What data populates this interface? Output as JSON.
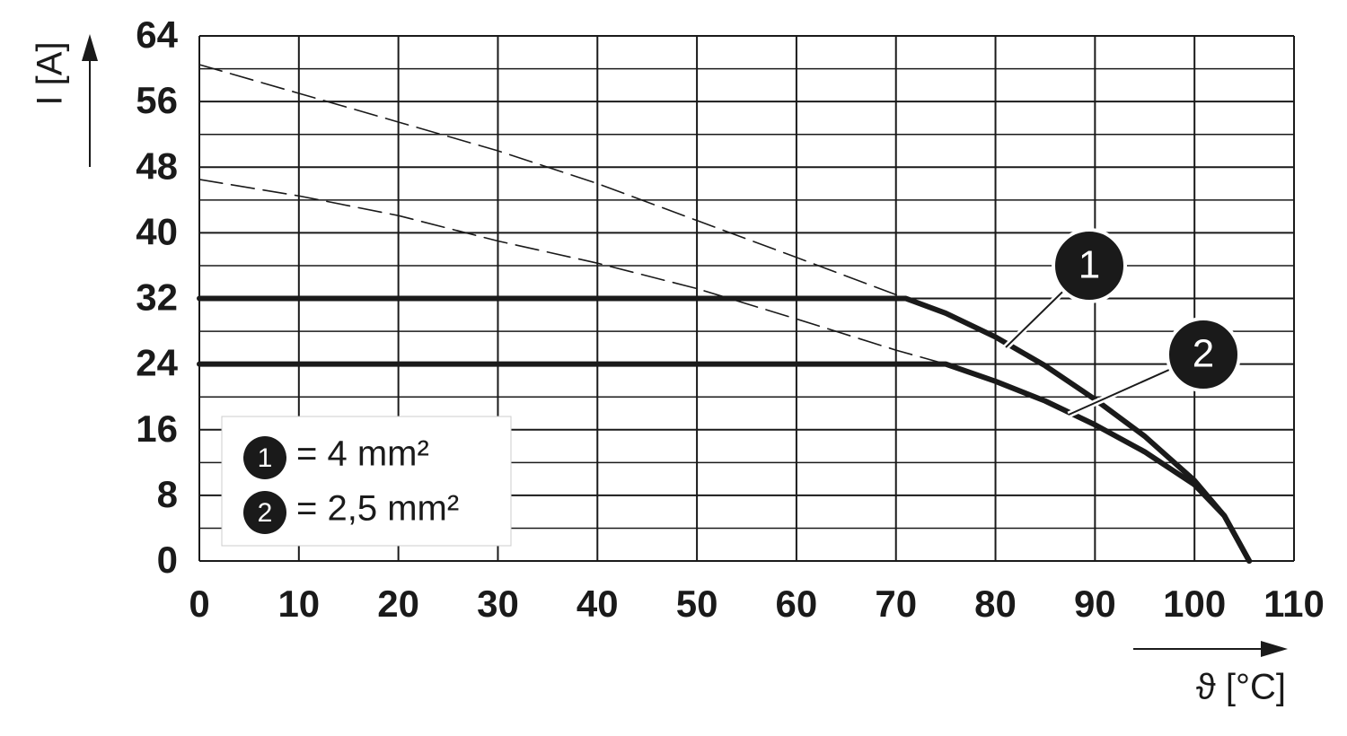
{
  "chart_data": {
    "type": "line",
    "x_label": "ϑ [°C]",
    "y_label": "I [A]",
    "xlim": [
      0,
      110
    ],
    "ylim": [
      0,
      64
    ],
    "xticks": [
      0,
      10,
      20,
      30,
      40,
      50,
      60,
      70,
      80,
      90,
      100,
      110
    ],
    "yticks": [
      0,
      8,
      16,
      24,
      32,
      40,
      48,
      56,
      64
    ],
    "y_minor_grid": [
      4,
      12,
      20,
      28,
      36,
      44,
      52,
      60
    ],
    "grid": true,
    "series": [
      {
        "name": "= 4 mm²",
        "marker": "1",
        "color": "#1a1a1a",
        "x": [
          0,
          71,
          75,
          80,
          85,
          90,
          95,
          100,
          103,
          105.5
        ],
        "values": [
          32,
          32,
          30.2,
          27.3,
          23.8,
          19.7,
          15.2,
          9.8,
          5.5,
          0
        ],
        "dashed_x": [
          0,
          10,
          20,
          30,
          40,
          50,
          60,
          71
        ],
        "dashed_values": [
          60.5,
          57,
          53.5,
          50,
          46,
          41.5,
          37,
          32
        ]
      },
      {
        "name": "= 2,5 mm²",
        "marker": "2",
        "color": "#1a1a1a",
        "x": [
          0,
          75,
          80,
          85,
          90,
          95,
          100,
          103,
          105.5
        ],
        "values": [
          24,
          24,
          21.9,
          19.5,
          16.6,
          13.3,
          9.3,
          5.5,
          0
        ],
        "dashed_x": [
          0,
          10,
          20,
          30,
          40,
          50,
          60,
          70,
          75
        ],
        "dashed_values": [
          46.5,
          44.5,
          42.1,
          39,
          36.3,
          33.2,
          29.5,
          25.7,
          24
        ]
      }
    ]
  }
}
